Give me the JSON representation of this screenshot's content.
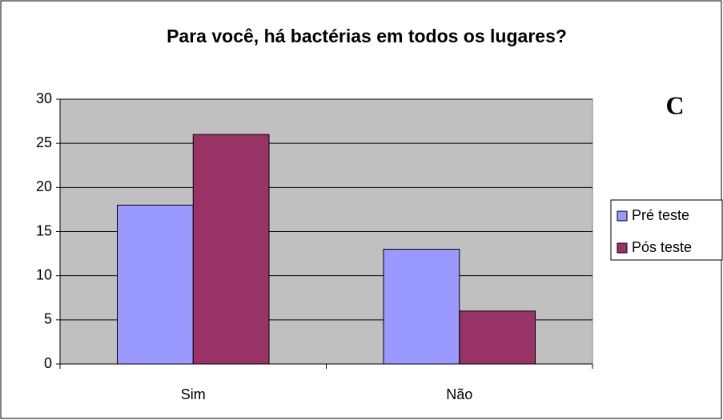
{
  "chart_data": {
    "type": "bar",
    "title": "Para você, há bactérias em todos os lugares?",
    "annotation": "C",
    "categories": [
      "Sim",
      "Não"
    ],
    "series": [
      {
        "name": "Pré teste",
        "color": "#9999ff",
        "values": [
          18,
          13
        ]
      },
      {
        "name": "Pós teste",
        "color": "#993366",
        "values": [
          26,
          6
        ]
      }
    ],
    "ylim": [
      0,
      30
    ],
    "yticks": [
      0,
      5,
      10,
      15,
      20,
      25,
      30
    ],
    "grid": true
  }
}
